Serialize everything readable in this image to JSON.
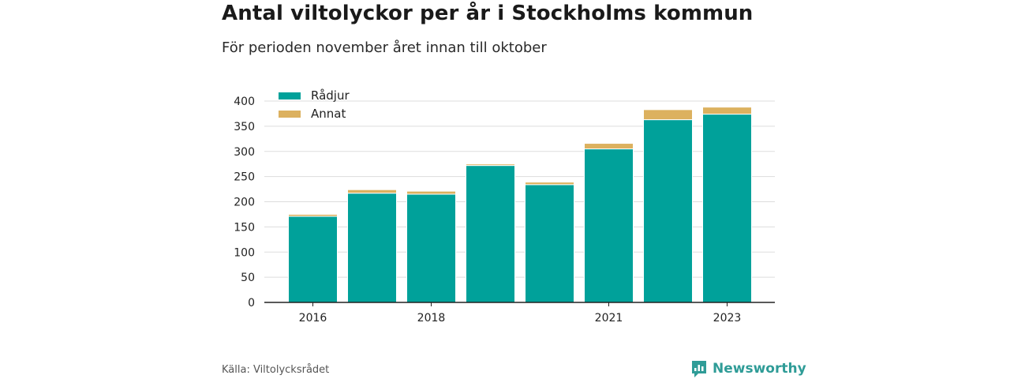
{
  "title": "Antal viltolyckor per år i Stockholms kommun",
  "subtitle": "För perioden november året innan till oktober",
  "source": "Källa: Viltolycksrådet",
  "brand": {
    "name": "Newsworthy",
    "icon": "newsworthy-chart-icon"
  },
  "colors": {
    "radjur": "#00a19a",
    "annat": "#dcb15f",
    "grid": "#dddddd",
    "axis": "#222222",
    "brand": "#2f9c97"
  },
  "chart_data": {
    "type": "bar",
    "stacked": true,
    "categories": [
      "2016",
      "2017",
      "2018",
      "2019",
      "2020",
      "2021",
      "2022",
      "2023"
    ],
    "x_tick_labels": [
      "2016",
      "",
      "2018",
      "",
      "",
      "2021",
      "",
      "2023"
    ],
    "series": [
      {
        "name": "Rådjur",
        "color": "#00a19a",
        "values": [
          171,
          217,
          215,
          272,
          234,
          305,
          363,
          374
        ]
      },
      {
        "name": "Annat",
        "color": "#dcb15f",
        "values": [
          4,
          7,
          6,
          3,
          5,
          11,
          20,
          14
        ]
      }
    ],
    "ylim": [
      0,
      400
    ],
    "y_ticks": [
      0,
      50,
      100,
      150,
      200,
      250,
      300,
      350,
      400
    ],
    "grid": true,
    "legend_position": "top-left"
  }
}
